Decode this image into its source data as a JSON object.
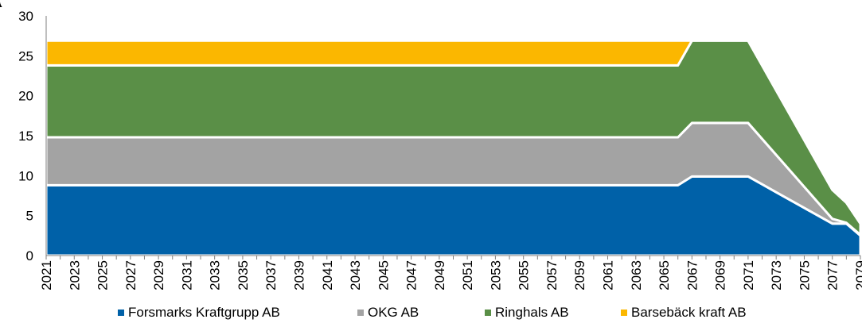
{
  "chart_data": {
    "type": "area",
    "stacked": true,
    "title": "",
    "xlabel": "",
    "ylabel": "",
    "x": [
      2021,
      2022,
      2023,
      2024,
      2025,
      2026,
      2027,
      2028,
      2029,
      2030,
      2031,
      2032,
      2033,
      2034,
      2035,
      2036,
      2037,
      2038,
      2039,
      2040,
      2041,
      2042,
      2043,
      2044,
      2045,
      2046,
      2047,
      2048,
      2049,
      2050,
      2051,
      2052,
      2053,
      2054,
      2055,
      2056,
      2057,
      2058,
      2059,
      2060,
      2061,
      2062,
      2063,
      2064,
      2065,
      2066,
      2067,
      2068,
      2069,
      2070,
      2071,
      2072,
      2073,
      2074,
      2075,
      2076,
      2077,
      2078,
      2079
    ],
    "x_tick_labels": [
      "2021",
      "2023",
      "2025",
      "2027",
      "2029",
      "2031",
      "2033",
      "2035",
      "2037",
      "2039",
      "2041",
      "2043",
      "2045",
      "2047",
      "2049",
      "2051",
      "2053",
      "2055",
      "2057",
      "2059",
      "2061",
      "2063",
      "2065",
      "2067",
      "2069",
      "2071",
      "2073",
      "2075",
      "2077",
      "2079"
    ],
    "ylim": [
      0,
      30
    ],
    "y_ticks": [
      "0",
      "5",
      "10",
      "15",
      "20",
      "25",
      "30"
    ],
    "grid": false,
    "legend_position": "bottom",
    "series": [
      {
        "name": "Forsmarks Kraftgrupp AB",
        "color": "#0061a8",
        "points": [
          [
            2021,
            8.8
          ],
          [
            2066,
            8.8
          ],
          [
            2067,
            9.9
          ],
          [
            2071,
            9.9
          ],
          [
            2077,
            4.0
          ],
          [
            2078,
            4.0
          ],
          [
            2079,
            2.5
          ]
        ]
      },
      {
        "name": "OKG AB",
        "color": "#a3a3a3",
        "points": [
          [
            2021,
            6.0
          ],
          [
            2066,
            6.0
          ],
          [
            2067,
            6.7
          ],
          [
            2071,
            6.7
          ],
          [
            2077,
            0.6
          ],
          [
            2078,
            0.1
          ],
          [
            2079,
            0.1
          ]
        ]
      },
      {
        "name": "Ringhals AB",
        "color": "#5a8f47",
        "points": [
          [
            2021,
            9.0
          ],
          [
            2066,
            9.0
          ],
          [
            2067,
            10.3
          ],
          [
            2071,
            10.3
          ],
          [
            2079,
            1.4
          ]
        ]
      },
      {
        "name": "Barsebäck kraft AB",
        "color": "#fbb700",
        "points": [
          [
            2021,
            3.1
          ],
          [
            2066,
            3.1
          ],
          [
            2067,
            0.0
          ],
          [
            2079,
            0.0
          ]
        ]
      }
    ]
  }
}
